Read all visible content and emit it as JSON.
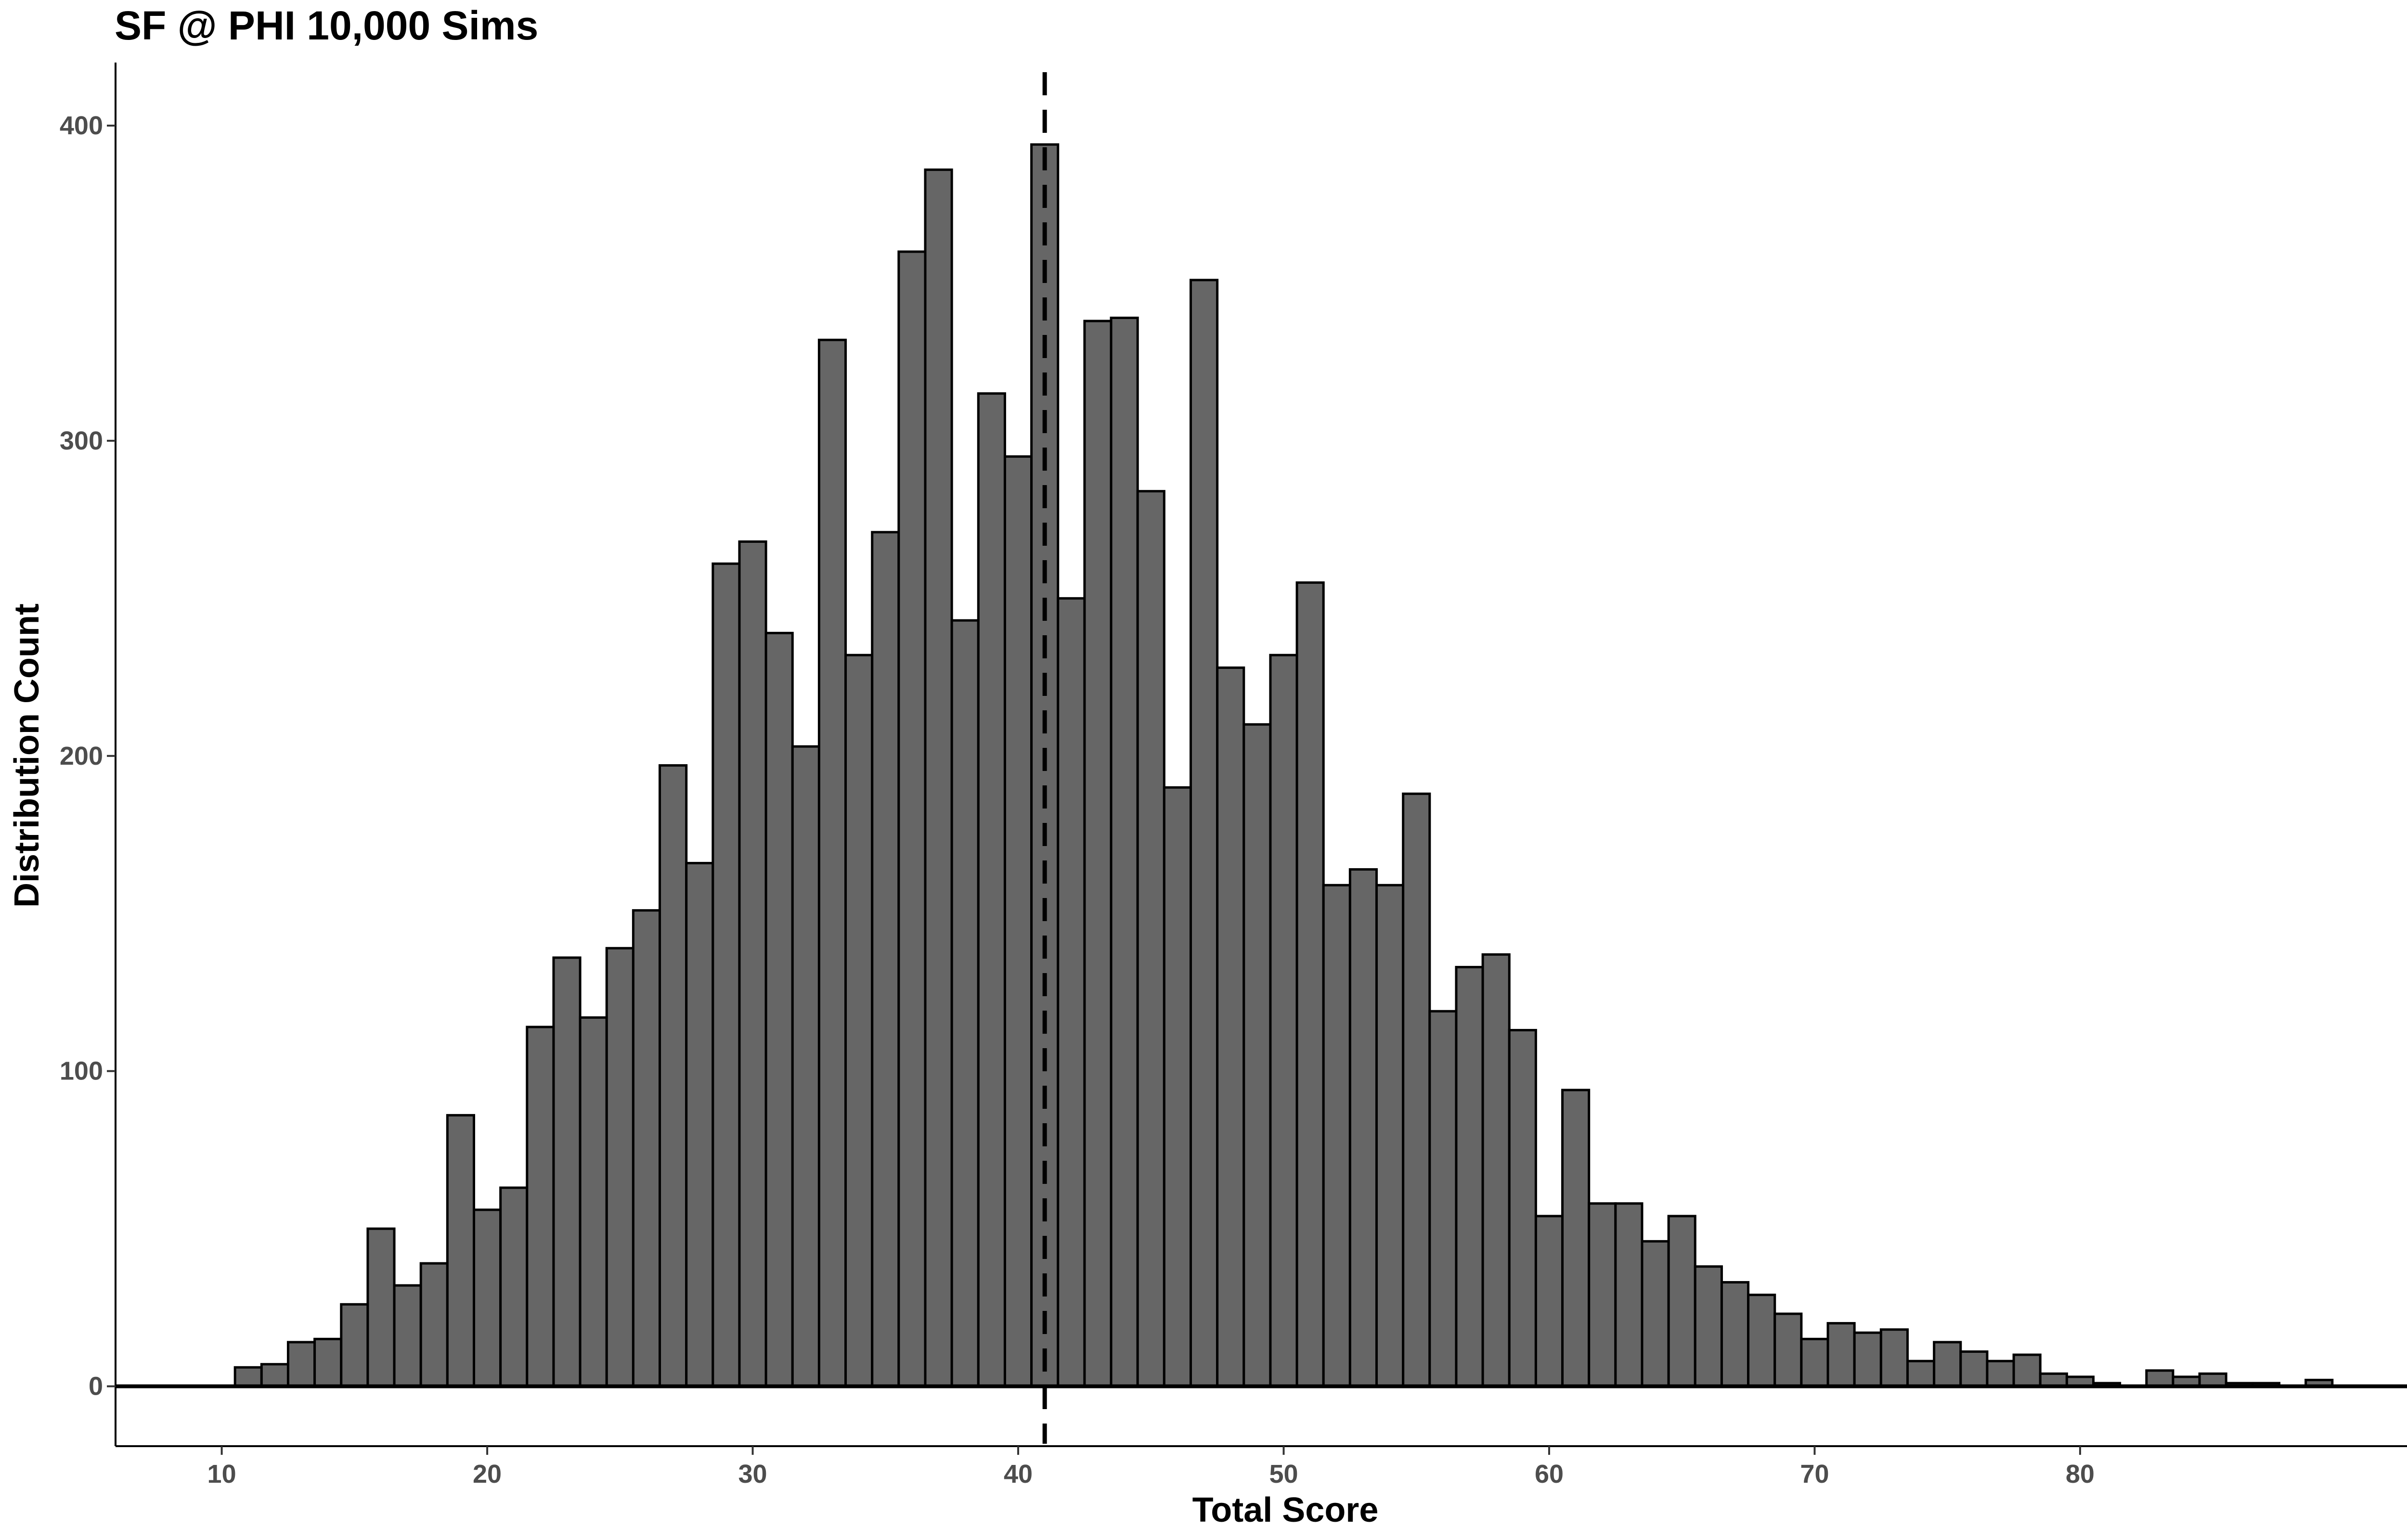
{
  "chart_data": {
    "type": "bar",
    "title": "SF @ PHI 10,000 Sims",
    "xlabel": "Total Score",
    "ylabel": "Distribution Count",
    "xlim": [
      6,
      94
    ],
    "ylim": [
      -19,
      420
    ],
    "x_ticks": [
      10,
      20,
      30,
      40,
      50,
      60,
      70,
      80
    ],
    "y_ticks": [
      0,
      100,
      200,
      300,
      400
    ],
    "grid": false,
    "legend": "none",
    "bin_width": 1,
    "mean_line_x": 41,
    "bar_fill": "#666666",
    "bar_stroke": "#000000",
    "x": [
      11,
      12,
      13,
      14,
      15,
      16,
      17,
      18,
      19,
      20,
      21,
      22,
      23,
      24,
      25,
      26,
      27,
      28,
      29,
      30,
      31,
      32,
      33,
      34,
      35,
      36,
      37,
      38,
      39,
      40,
      41,
      42,
      43,
      44,
      45,
      46,
      47,
      48,
      49,
      50,
      51,
      52,
      53,
      54,
      55,
      56,
      57,
      58,
      59,
      60,
      61,
      62,
      63,
      64,
      65,
      66,
      67,
      68,
      69,
      70,
      71,
      72,
      73,
      74,
      75,
      76,
      77,
      78,
      79,
      80,
      81,
      82,
      83,
      84,
      85,
      86,
      87,
      88,
      89
    ],
    "values": [
      6,
      7,
      14,
      15,
      26,
      50,
      32,
      39,
      86,
      56,
      63,
      114,
      136,
      117,
      139,
      151,
      197,
      166,
      261,
      268,
      239,
      203,
      332,
      232,
      271,
      360,
      386,
      243,
      315,
      295,
      394,
      250,
      338,
      339,
      284,
      190,
      351,
      228,
      210,
      232,
      255,
      159,
      164,
      159,
      188,
      119,
      133,
      137,
      113,
      54,
      94,
      58,
      58,
      46,
      54,
      38,
      33,
      29,
      23,
      15,
      20,
      17,
      18,
      8,
      14,
      11,
      8,
      10,
      4,
      3,
      1,
      0,
      5,
      3,
      4,
      1,
      1,
      0,
      2
    ]
  }
}
